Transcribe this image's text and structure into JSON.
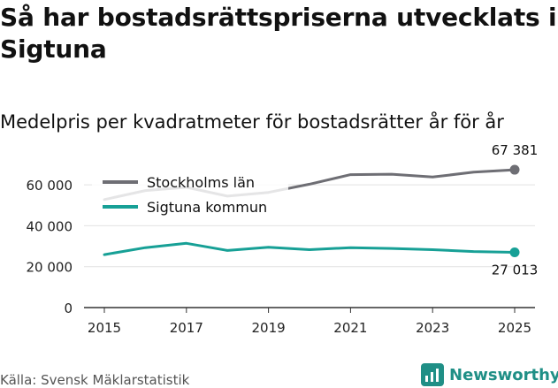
{
  "title": "Så har bostadsrättspriserna utvecklats i Sigtuna",
  "subtitle": "Medelpris per kvadratmeter för bostadsrätter år för år",
  "source": "Källa: Svensk Mäklarstatistik",
  "brand": "Newsworthy",
  "chart_data": {
    "type": "line",
    "title": "Så har bostadsrättspriserna utvecklats i Sigtuna",
    "subtitle": "Medelpris per kvadratmeter för bostadsrätter år för år",
    "xlabel": "",
    "ylabel": "",
    "x": [
      2015,
      2016,
      2017,
      2018,
      2019,
      2020,
      2021,
      2022,
      2023,
      2024,
      2025
    ],
    "xticks": [
      "2015",
      "2017",
      "2019",
      "2021",
      "2023",
      "2025"
    ],
    "yticks": [
      0,
      20000,
      40000,
      60000
    ],
    "ytick_labels": [
      "0",
      "20 000",
      "40 000",
      "60 000"
    ],
    "ylim": [
      0,
      70000
    ],
    "grid": true,
    "legend_position": "top-left",
    "series": [
      {
        "name": "Stockholms län",
        "color": "#6e6e74",
        "values": [
          52800,
          57200,
          58800,
          54500,
          56300,
          60300,
          65000,
          65200,
          63800,
          66200,
          67381
        ],
        "end_label": "67 381"
      },
      {
        "name": "Sigtuna kommun",
        "color": "#17a096",
        "values": [
          25900,
          29300,
          31400,
          27900,
          29500,
          28300,
          29300,
          28900,
          28300,
          27400,
          27013
        ],
        "end_label": "27 013"
      }
    ]
  }
}
